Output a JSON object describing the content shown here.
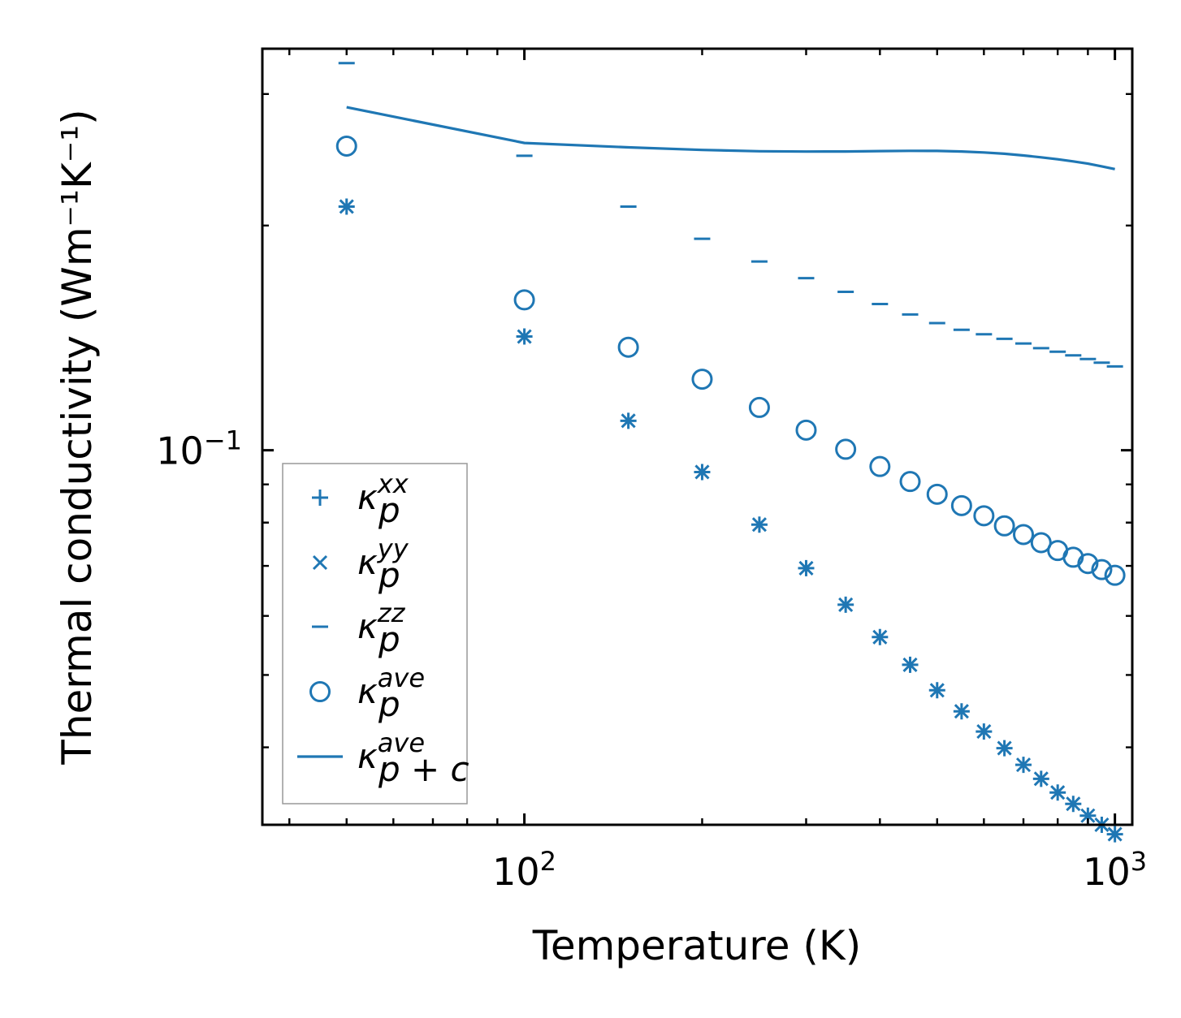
{
  "chart_data": {
    "type": "scatter",
    "xscale": "log",
    "yscale": "log",
    "xlabel": "Temperature (K)",
    "ylabel": "Thermal conductivity (Wm⁻¹K⁻¹)",
    "xlim": [
      36,
      1070
    ],
    "ylim": [
      0.0315,
      0.345
    ],
    "x_tick_labels": [
      {
        "value": 100,
        "base": "10",
        "exp": "2"
      },
      {
        "value": 1000,
        "base": "10",
        "exp": "3"
      }
    ],
    "y_tick_labels": [
      {
        "value": 0.1,
        "base": "10",
        "exp": "−1"
      }
    ],
    "color": "#1f77b4",
    "x": [
      50,
      100,
      150,
      200,
      250,
      300,
      350,
      400,
      450,
      500,
      550,
      600,
      650,
      700,
      750,
      800,
      850,
      900,
      950,
      1000
    ],
    "series": [
      {
        "name": "κ_p^xx",
        "marker": "plus",
        "values": [
          0.212,
          0.142,
          0.1095,
          0.0935,
          0.0795,
          0.0695,
          0.0621,
          0.0562,
          0.0516,
          0.0477,
          0.0447,
          0.042,
          0.0399,
          0.0379,
          0.0363,
          0.0348,
          0.0336,
          0.0324,
          0.0315,
          0.0306
        ]
      },
      {
        "name": "κ_p^yy",
        "marker": "x",
        "values": [
          0.212,
          0.142,
          0.1095,
          0.0935,
          0.0795,
          0.0695,
          0.0621,
          0.0562,
          0.0516,
          0.0477,
          0.0447,
          0.042,
          0.0399,
          0.0379,
          0.0363,
          0.0348,
          0.0336,
          0.0324,
          0.0315,
          0.0306
        ]
      },
      {
        "name": "κ_p^zz",
        "marker": "hline",
        "values": [
          0.33,
          0.248,
          0.212,
          0.192,
          0.179,
          0.17,
          0.163,
          0.157,
          0.152,
          0.148,
          0.145,
          0.143,
          0.141,
          0.139,
          0.137,
          0.1355,
          0.134,
          0.1325,
          0.131,
          0.1295
        ]
      },
      {
        "name": "κ_p^ave",
        "marker": "circle",
        "values": [
          0.2555,
          0.159,
          0.1374,
          0.1245,
          0.1141,
          0.1064,
          0.1003,
          0.0951,
          0.0908,
          0.0873,
          0.0843,
          0.0817,
          0.0792,
          0.0771,
          0.0752,
          0.0734,
          0.0719,
          0.0705,
          0.0692,
          0.068
        ]
      },
      {
        "name": "κ_p+c^ave",
        "marker": "line",
        "values": [
          0.288,
          0.258,
          0.2545,
          0.2525,
          0.2515,
          0.2512,
          0.2513,
          0.2516,
          0.2518,
          0.2517,
          0.2513,
          0.2505,
          0.2495,
          0.2482,
          0.2468,
          0.2453,
          0.2437,
          0.242,
          0.24,
          0.238
        ]
      }
    ],
    "legend": {
      "position": "lower-left",
      "entries": [
        {
          "marker": "plus",
          "base": "κ",
          "sub": "p",
          "sup": "xx"
        },
        {
          "marker": "x",
          "base": "κ",
          "sub": "p",
          "sup": "yy"
        },
        {
          "marker": "hline",
          "base": "κ",
          "sub": "p",
          "sup": "zz"
        },
        {
          "marker": "circle",
          "base": "κ",
          "sub": "p",
          "sup": "ave"
        },
        {
          "marker": "line",
          "base": "κ",
          "sub": "p + c",
          "sup": "ave"
        }
      ]
    }
  }
}
